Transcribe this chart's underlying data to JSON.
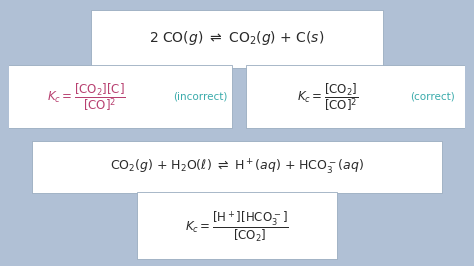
{
  "bg_color": "#c8d5e5",
  "box_color": "#ffffff",
  "text_color_black": "#2a2a2a",
  "text_color_pink": "#b84070",
  "text_color_teal": "#3aabab",
  "fig_bg": "#b0c0d5",
  "divider_color": "#a0afc0"
}
